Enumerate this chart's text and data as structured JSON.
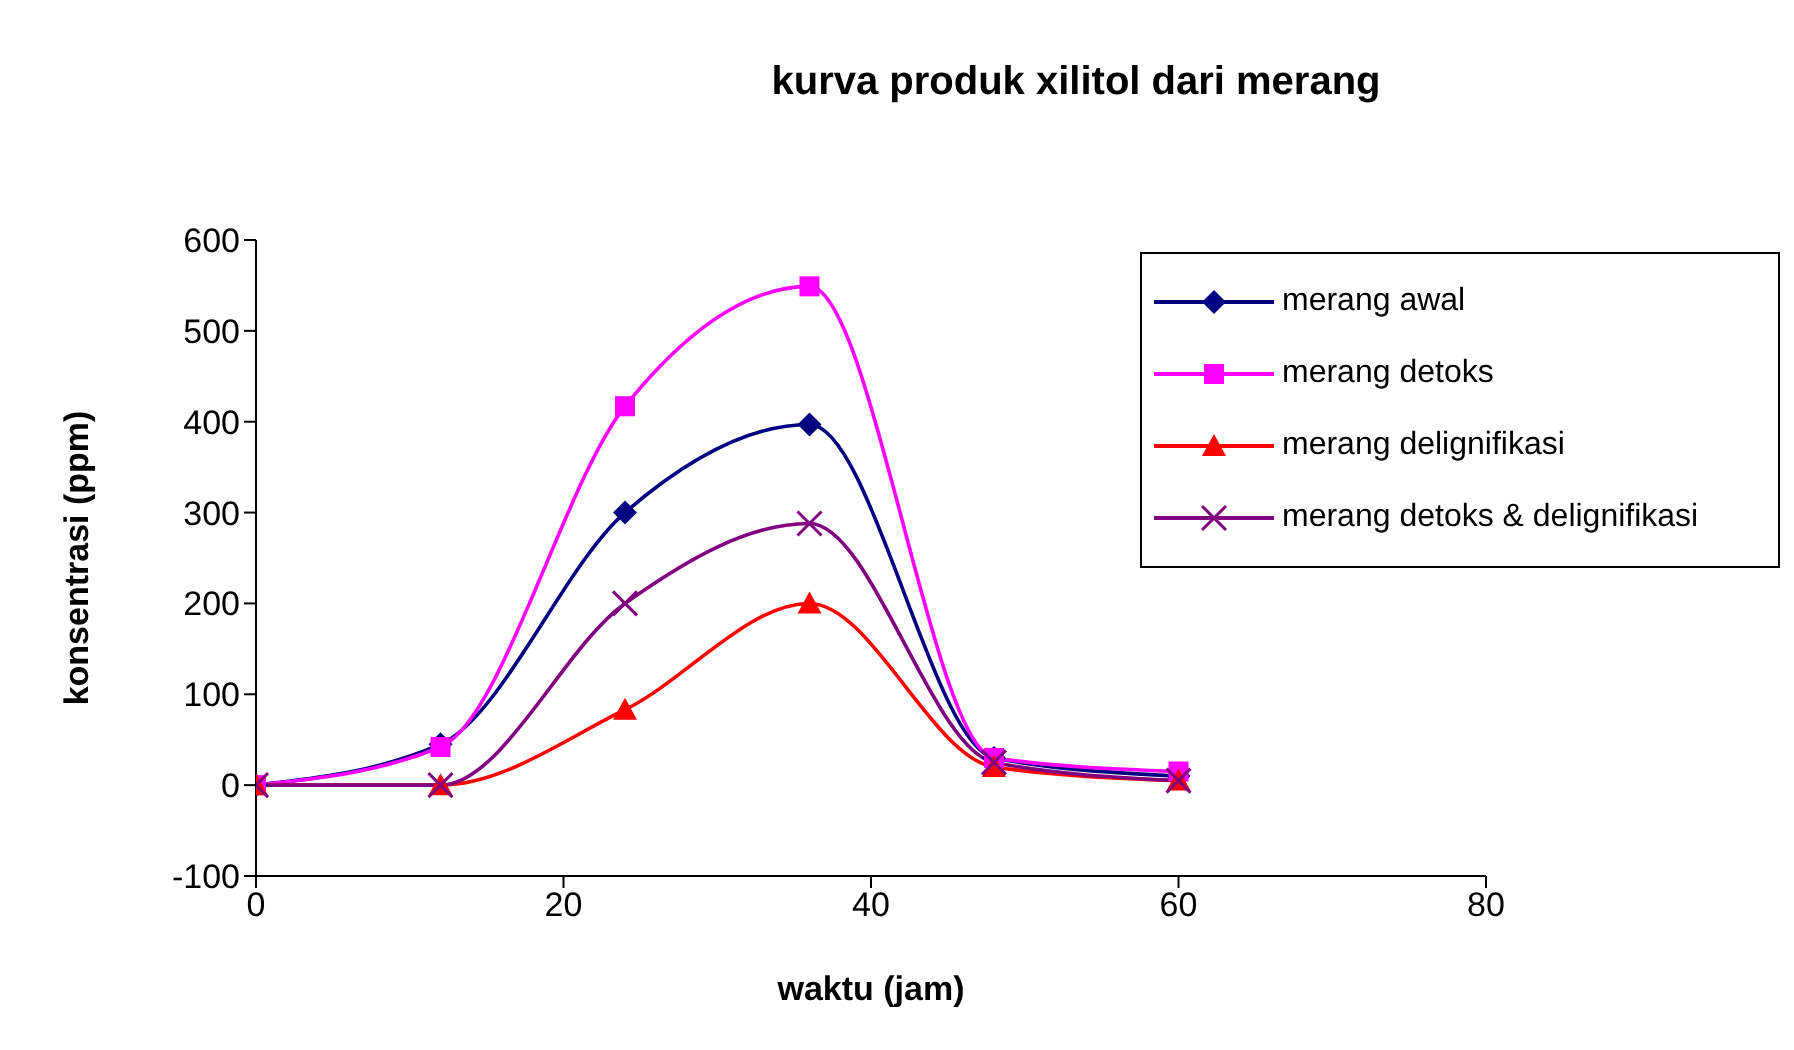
{
  "chart_data": {
    "type": "line",
    "title": "kurva produk xilitol dari merang",
    "xlabel": "waktu (jam)",
    "ylabel": "konsentrasi (ppm)",
    "x": [
      0,
      12,
      24,
      36,
      48,
      60
    ],
    "series": [
      {
        "name": "merang awal",
        "color": "#000080",
        "marker": "diamond",
        "values": [
          0,
          45,
          300,
          397,
          30,
          10
        ]
      },
      {
        "name": "merang detoks",
        "color": "#ff00ff",
        "marker": "square",
        "values": [
          0,
          42,
          417,
          549,
          30,
          15
        ]
      },
      {
        "name": "merang delignifikasi",
        "color": "#ff0000",
        "marker": "triangle",
        "values": [
          0,
          0,
          83,
          200,
          20,
          5
        ]
      },
      {
        "name": "merang detoks & delignifikasi",
        "color": "#800080",
        "marker": "cross",
        "values": [
          0,
          0,
          200,
          288,
          25,
          5
        ]
      }
    ],
    "xlim": [
      0,
      80
    ],
    "xticks": [
      0,
      20,
      40,
      60,
      80
    ],
    "ylim": [
      -100,
      600
    ],
    "yticks": [
      -100,
      0,
      100,
      200,
      300,
      400,
      500,
      600
    ],
    "grid": false,
    "legend": "top right",
    "line_style": "solid"
  }
}
